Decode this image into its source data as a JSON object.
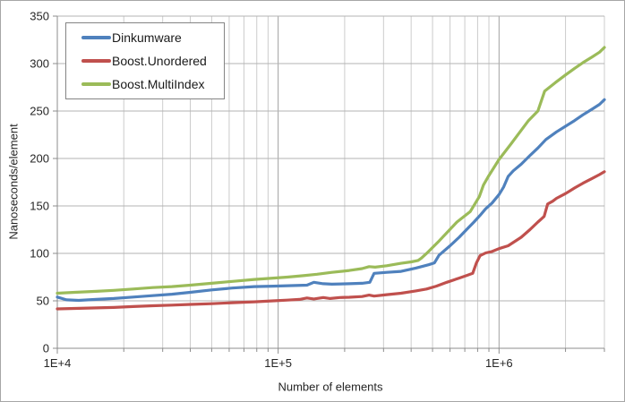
{
  "chart_data": {
    "type": "line",
    "xlabel": "Number of elements",
    "ylabel": "Nanoseconds/element",
    "x_scale": "log",
    "xlim": [
      10000,
      3000000
    ],
    "ylim": [
      0,
      350
    ],
    "y_ticks": [
      0,
      50,
      100,
      150,
      200,
      250,
      300,
      350
    ],
    "x_ticks": [
      {
        "value": 10000,
        "label": "1E+4"
      },
      {
        "value": 100000,
        "label": "1E+5"
      },
      {
        "value": 1000000,
        "label": "1E+6"
      }
    ],
    "grid": {
      "horizontal": true,
      "vertical_log_minors": true
    },
    "legend_position": "top-left",
    "series": [
      {
        "name": "Dinkumware",
        "color": "#4F81BD",
        "points": [
          [
            10000,
            54
          ],
          [
            11000,
            51
          ],
          [
            12500,
            50.5
          ],
          [
            15000,
            51.5
          ],
          [
            18000,
            52.5
          ],
          [
            22000,
            54
          ],
          [
            27000,
            55.5
          ],
          [
            33000,
            57
          ],
          [
            40000,
            59
          ],
          [
            50000,
            61.5
          ],
          [
            62000,
            63.5
          ],
          [
            78000,
            65
          ],
          [
            95000,
            65.5
          ],
          [
            115000,
            66
          ],
          [
            135000,
            66.5
          ],
          [
            145000,
            69.5
          ],
          [
            160000,
            68
          ],
          [
            175000,
            67.5
          ],
          [
            210000,
            68
          ],
          [
            240000,
            68.5
          ],
          [
            260000,
            69.5
          ],
          [
            272000,
            79
          ],
          [
            310000,
            80
          ],
          [
            360000,
            81
          ],
          [
            420000,
            84.5
          ],
          [
            480000,
            88
          ],
          [
            510000,
            90
          ],
          [
            535000,
            98
          ],
          [
            600000,
            108
          ],
          [
            660000,
            117
          ],
          [
            720000,
            126
          ],
          [
            770000,
            133
          ],
          [
            820000,
            140
          ],
          [
            870000,
            147
          ],
          [
            930000,
            153
          ],
          [
            1000000,
            162
          ],
          [
            1050000,
            170
          ],
          [
            1100000,
            181
          ],
          [
            1160000,
            187
          ],
          [
            1260000,
            194
          ],
          [
            1380000,
            203
          ],
          [
            1500000,
            211
          ],
          [
            1630000,
            220
          ],
          [
            1820000,
            228
          ],
          [
            2000000,
            234
          ],
          [
            2200000,
            240
          ],
          [
            2400000,
            246
          ],
          [
            2640000,
            252
          ],
          [
            2850000,
            257
          ],
          [
            3000000,
            262
          ]
        ]
      },
      {
        "name": "Boost.Unordered",
        "color": "#C0504D",
        "points": [
          [
            10000,
            41.5
          ],
          [
            12000,
            42
          ],
          [
            15000,
            42.5
          ],
          [
            18000,
            43
          ],
          [
            22000,
            44
          ],
          [
            27000,
            44.8
          ],
          [
            33000,
            45.5
          ],
          [
            40000,
            46.2
          ],
          [
            50000,
            47
          ],
          [
            62000,
            48
          ],
          [
            78000,
            49
          ],
          [
            95000,
            50
          ],
          [
            110000,
            50.8
          ],
          [
            125000,
            51.5
          ],
          [
            135000,
            53
          ],
          [
            145000,
            52
          ],
          [
            160000,
            53.5
          ],
          [
            172000,
            52.5
          ],
          [
            190000,
            53.5
          ],
          [
            210000,
            53.8
          ],
          [
            240000,
            54.5
          ],
          [
            258000,
            56
          ],
          [
            272000,
            55
          ],
          [
            310000,
            56.5
          ],
          [
            360000,
            58
          ],
          [
            420000,
            60.5
          ],
          [
            470000,
            62.5
          ],
          [
            520000,
            65.5
          ],
          [
            580000,
            69.5
          ],
          [
            660000,
            74
          ],
          [
            720000,
            77
          ],
          [
            760000,
            79
          ],
          [
            790000,
            90
          ],
          [
            820000,
            97.5
          ],
          [
            870000,
            100.5
          ],
          [
            930000,
            102
          ],
          [
            1000000,
            105
          ],
          [
            1100000,
            108
          ],
          [
            1260000,
            117
          ],
          [
            1380000,
            125
          ],
          [
            1500000,
            133
          ],
          [
            1550000,
            136
          ],
          [
            1600000,
            139
          ],
          [
            1660000,
            152
          ],
          [
            1750000,
            155
          ],
          [
            1820000,
            158
          ],
          [
            2000000,
            163
          ],
          [
            2200000,
            169
          ],
          [
            2400000,
            174
          ],
          [
            2640000,
            179
          ],
          [
            2850000,
            183
          ],
          [
            3000000,
            186
          ]
        ]
      },
      {
        "name": "Boost.MultiIndex",
        "color": "#9BBB59",
        "points": [
          [
            10000,
            58
          ],
          [
            12000,
            59
          ],
          [
            15000,
            60
          ],
          [
            18000,
            61
          ],
          [
            22000,
            62.5
          ],
          [
            27000,
            64
          ],
          [
            33000,
            65
          ],
          [
            40000,
            66.5
          ],
          [
            50000,
            68.5
          ],
          [
            62000,
            70.5
          ],
          [
            78000,
            72.5
          ],
          [
            95000,
            74
          ],
          [
            110000,
            75
          ],
          [
            130000,
            76.5
          ],
          [
            150000,
            78
          ],
          [
            175000,
            80
          ],
          [
            210000,
            82
          ],
          [
            240000,
            84
          ],
          [
            258000,
            86
          ],
          [
            275000,
            85.5
          ],
          [
            310000,
            87
          ],
          [
            360000,
            89.5
          ],
          [
            400000,
            91
          ],
          [
            430000,
            92.5
          ],
          [
            445000,
            95
          ],
          [
            475000,
            101
          ],
          [
            535000,
            113
          ],
          [
            645000,
            133
          ],
          [
            740000,
            144
          ],
          [
            815000,
            160
          ],
          [
            850000,
            172
          ],
          [
            900000,
            182
          ],
          [
            1000000,
            199
          ],
          [
            1130000,
            215
          ],
          [
            1360000,
            240
          ],
          [
            1500000,
            250
          ],
          [
            1610000,
            271
          ],
          [
            1800000,
            280
          ],
          [
            2000000,
            288
          ],
          [
            2200000,
            295
          ],
          [
            2400000,
            301
          ],
          [
            2640000,
            307
          ],
          [
            2850000,
            312
          ],
          [
            3000000,
            317
          ]
        ]
      }
    ]
  },
  "colors": {
    "background": "#ffffff",
    "frame_border": "#a6a6a6",
    "grid_horizontal": "#b3b3b3",
    "grid_vertical_minor": "#cccccc",
    "grid_vertical_major": "#a0a0a0",
    "axis_line": "#8c8c8c",
    "tick_text": "#262626",
    "legend_border": "#848484"
  }
}
